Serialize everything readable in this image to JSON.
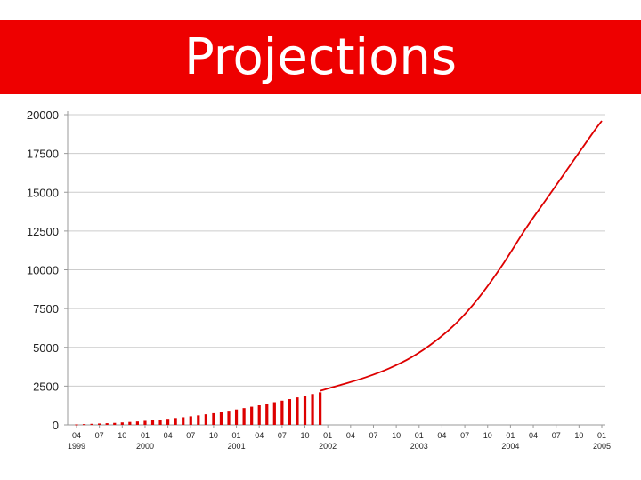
{
  "title": "Projections",
  "colors": {
    "title_bg": "#ee0000",
    "title_text": "#ffffff",
    "series": "#dd0000",
    "grid": "#cccccc",
    "axis": "#999999"
  },
  "chart_data": {
    "type": "bar",
    "title": "Projections",
    "xlabel": "",
    "ylabel": "",
    "ylim": [
      0,
      20000
    ],
    "y_ticks": [
      0,
      2500,
      5000,
      7500,
      10000,
      12500,
      15000,
      17500,
      20000
    ],
    "grid": true,
    "x_tick_labels": [
      {
        "month": "04",
        "year": "1999"
      },
      {
        "month": "07",
        "year": ""
      },
      {
        "month": "10",
        "year": ""
      },
      {
        "month": "01",
        "year": "2000"
      },
      {
        "month": "04",
        "year": ""
      },
      {
        "month": "07",
        "year": ""
      },
      {
        "month": "10",
        "year": ""
      },
      {
        "month": "01",
        "year": "2001"
      },
      {
        "month": "04",
        "year": ""
      },
      {
        "month": "07",
        "year": ""
      },
      {
        "month": "10",
        "year": ""
      },
      {
        "month": "01",
        "year": "2002"
      },
      {
        "month": "04",
        "year": ""
      },
      {
        "month": "07",
        "year": ""
      },
      {
        "month": "10",
        "year": ""
      },
      {
        "month": "01",
        "year": "2003"
      },
      {
        "month": "04",
        "year": ""
      },
      {
        "month": "07",
        "year": ""
      },
      {
        "month": "10",
        "year": ""
      },
      {
        "month": "01",
        "year": "2004"
      },
      {
        "month": "04",
        "year": ""
      },
      {
        "month": "07",
        "year": ""
      },
      {
        "month": "10",
        "year": ""
      },
      {
        "month": "01",
        "year": "2005"
      }
    ],
    "series": [
      {
        "type": "bar",
        "x": [
          "1999-04",
          "1999-05",
          "1999-06",
          "1999-07",
          "1999-08",
          "1999-09",
          "1999-10",
          "1999-11",
          "1999-12",
          "2000-01",
          "2000-02",
          "2000-03",
          "2000-04",
          "2000-05",
          "2000-06",
          "2000-07",
          "2000-08",
          "2000-09",
          "2000-10",
          "2000-11",
          "2000-12",
          "2001-01",
          "2001-02",
          "2001-03",
          "2001-04",
          "2001-05",
          "2001-06",
          "2001-07",
          "2001-08",
          "2001-09",
          "2001-10",
          "2001-11",
          "2001-12"
        ],
        "values": [
          30,
          50,
          70,
          90,
          110,
          130,
          160,
          190,
          220,
          260,
          300,
          340,
          390,
          440,
          490,
          550,
          610,
          680,
          750,
          830,
          910,
          990,
          1080,
          1170,
          1260,
          1360,
          1460,
          1560,
          1660,
          1770,
          1880,
          1990,
          2100
        ]
      },
      {
        "type": "line",
        "x": [
          "2001-12",
          "2002-03",
          "2002-06",
          "2002-09",
          "2002-12",
          "2003-03",
          "2003-06",
          "2003-09",
          "2003-12",
          "2004-03",
          "2004-06",
          "2004-09",
          "2004-12",
          "2005-01"
        ],
        "values": [
          2200,
          2620,
          3070,
          3630,
          4360,
          5350,
          6620,
          8300,
          10350,
          12650,
          14750,
          16850,
          18950,
          19600
        ]
      }
    ]
  }
}
